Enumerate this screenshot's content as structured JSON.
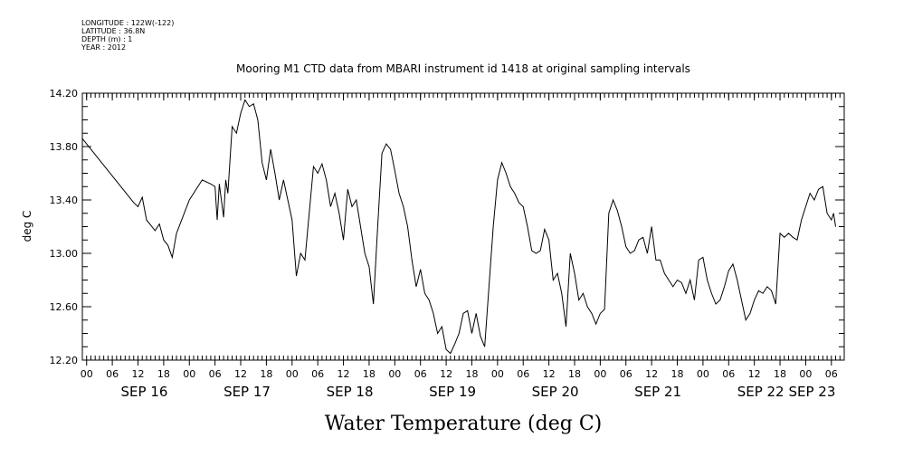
{
  "metadata": {
    "longitude": "LONGITUDE : 122W(-122)",
    "latitude": "LATITUDE : 36.8N",
    "depth": "DEPTH (m) : 1",
    "year": "YEAR : 2012"
  },
  "chart_data": {
    "type": "line",
    "title": "Mooring M1 CTD data from MBARI instrument id 1418 at original sampling intervals",
    "xlabel": "Water Temperature (deg C)",
    "ylabel": "deg C",
    "xlim": [
      "2012-09-15T23:00",
      "2012-09-23T09:00"
    ],
    "ylim": [
      12.2,
      14.2
    ],
    "yticks": [
      12.2,
      12.6,
      13.0,
      13.4,
      13.8,
      14.2
    ],
    "y_tick_labels": [
      "12.20",
      "12.60",
      "13.00",
      "13.40",
      "13.80",
      "14.20"
    ],
    "x_tick_labels": [
      {
        "t": "2012-09-16T00:00",
        "label": "00"
      },
      {
        "t": "2012-09-16T06:00",
        "label": "06"
      },
      {
        "t": "2012-09-16T12:00",
        "label": "12"
      },
      {
        "t": "2012-09-16T18:00",
        "label": "18"
      },
      {
        "t": "2012-09-17T00:00",
        "label": "00"
      },
      {
        "t": "2012-09-17T06:00",
        "label": "06"
      },
      {
        "t": "2012-09-17T12:00",
        "label": "12"
      },
      {
        "t": "2012-09-17T18:00",
        "label": "18"
      },
      {
        "t": "2012-09-18T00:00",
        "label": "00"
      },
      {
        "t": "2012-09-18T06:00",
        "label": "06"
      },
      {
        "t": "2012-09-18T12:00",
        "label": "12"
      },
      {
        "t": "2012-09-18T18:00",
        "label": "18"
      },
      {
        "t": "2012-09-19T00:00",
        "label": "00"
      },
      {
        "t": "2012-09-19T06:00",
        "label": "06"
      },
      {
        "t": "2012-09-19T12:00",
        "label": "12"
      },
      {
        "t": "2012-09-19T18:00",
        "label": "18"
      },
      {
        "t": "2012-09-20T00:00",
        "label": "00"
      },
      {
        "t": "2012-09-20T06:00",
        "label": "06"
      },
      {
        "t": "2012-09-20T12:00",
        "label": "12"
      },
      {
        "t": "2012-09-20T18:00",
        "label": "18"
      },
      {
        "t": "2012-09-21T00:00",
        "label": "00"
      },
      {
        "t": "2012-09-21T06:00",
        "label": "06"
      },
      {
        "t": "2012-09-21T12:00",
        "label": "12"
      },
      {
        "t": "2012-09-21T18:00",
        "label": "18"
      },
      {
        "t": "2012-09-22T00:00",
        "label": "00"
      },
      {
        "t": "2012-09-22T06:00",
        "label": "06"
      },
      {
        "t": "2012-09-22T12:00",
        "label": "12"
      },
      {
        "t": "2012-09-22T18:00",
        "label": "18"
      },
      {
        "t": "2012-09-23T00:00",
        "label": "00"
      },
      {
        "t": "2012-09-23T06:00",
        "label": "06"
      }
    ],
    "x_day_labels": [
      {
        "t": "2012-09-16T12:00",
        "label": "SEP 16"
      },
      {
        "t": "2012-09-17T12:00",
        "label": "SEP 17"
      },
      {
        "t": "2012-09-18T12:00",
        "label": "SEP 18"
      },
      {
        "t": "2012-09-19T12:00",
        "label": "SEP 19"
      },
      {
        "t": "2012-09-20T12:00",
        "label": "SEP 20"
      },
      {
        "t": "2012-09-21T12:00",
        "label": "SEP 21"
      },
      {
        "t": "2012-09-22T12:00",
        "label": "SEP 22"
      },
      {
        "t": "2012-09-23T00:00",
        "label": "SEP 23"
      }
    ],
    "grid": false,
    "series": [
      {
        "points": [
          [
            "2012-09-15T23:00",
            13.86
          ],
          [
            "2012-09-16T05:00",
            13.62
          ],
          [
            "2012-09-16T11:00",
            13.38
          ],
          [
            "2012-09-16T12:00",
            13.35
          ],
          [
            "2012-09-16T13:00",
            13.42
          ],
          [
            "2012-09-16T14:00",
            13.25
          ],
          [
            "2012-09-16T16:00",
            13.17
          ],
          [
            "2012-09-16T17:00",
            13.22
          ],
          [
            "2012-09-16T18:00",
            13.1
          ],
          [
            "2012-09-16T19:00",
            13.06
          ],
          [
            "2012-09-16T20:00",
            12.97
          ],
          [
            "2012-09-16T21:00",
            13.15
          ],
          [
            "2012-09-17T00:00",
            13.4
          ],
          [
            "2012-09-17T02:00",
            13.5
          ],
          [
            "2012-09-17T03:00",
            13.55
          ],
          [
            "2012-09-17T05:00",
            13.52
          ],
          [
            "2012-09-17T06:00",
            13.5
          ],
          [
            "2012-09-17T06:30",
            13.25
          ],
          [
            "2012-09-17T07:00",
            13.52
          ],
          [
            "2012-09-17T08:00",
            13.27
          ],
          [
            "2012-09-17T08:30",
            13.55
          ],
          [
            "2012-09-17T09:00",
            13.45
          ],
          [
            "2012-09-17T10:00",
            13.95
          ],
          [
            "2012-09-17T11:00",
            13.9
          ],
          [
            "2012-09-17T12:00",
            14.05
          ],
          [
            "2012-09-17T13:00",
            14.15
          ],
          [
            "2012-09-17T14:00",
            14.1
          ],
          [
            "2012-09-17T15:00",
            14.12
          ],
          [
            "2012-09-17T16:00",
            14.0
          ],
          [
            "2012-09-17T17:00",
            13.68
          ],
          [
            "2012-09-17T18:00",
            13.55
          ],
          [
            "2012-09-17T19:00",
            13.78
          ],
          [
            "2012-09-17T20:00",
            13.6
          ],
          [
            "2012-09-17T21:00",
            13.4
          ],
          [
            "2012-09-17T22:00",
            13.55
          ],
          [
            "2012-09-17T23:00",
            13.4
          ],
          [
            "2012-09-18T00:00",
            13.25
          ],
          [
            "2012-09-18T01:00",
            12.83
          ],
          [
            "2012-09-18T02:00",
            13.0
          ],
          [
            "2012-09-18T03:00",
            12.95
          ],
          [
            "2012-09-18T04:00",
            13.3
          ],
          [
            "2012-09-18T05:00",
            13.65
          ],
          [
            "2012-09-18T06:00",
            13.6
          ],
          [
            "2012-09-18T07:00",
            13.67
          ],
          [
            "2012-09-18T08:00",
            13.55
          ],
          [
            "2012-09-18T09:00",
            13.35
          ],
          [
            "2012-09-18T10:00",
            13.45
          ],
          [
            "2012-09-18T11:00",
            13.3
          ],
          [
            "2012-09-18T12:00",
            13.1
          ],
          [
            "2012-09-18T13:00",
            13.48
          ],
          [
            "2012-09-18T14:00",
            13.35
          ],
          [
            "2012-09-18T15:00",
            13.4
          ],
          [
            "2012-09-18T16:00",
            13.2
          ],
          [
            "2012-09-18T17:00",
            13.0
          ],
          [
            "2012-09-18T18:00",
            12.9
          ],
          [
            "2012-09-18T19:00",
            12.62
          ],
          [
            "2012-09-18T20:00",
            13.2
          ],
          [
            "2012-09-18T21:00",
            13.75
          ],
          [
            "2012-09-18T22:00",
            13.82
          ],
          [
            "2012-09-18T23:00",
            13.78
          ],
          [
            "2012-09-19T00:00",
            13.62
          ],
          [
            "2012-09-19T01:00",
            13.45
          ],
          [
            "2012-09-19T02:00",
            13.35
          ],
          [
            "2012-09-19T03:00",
            13.2
          ],
          [
            "2012-09-19T04:00",
            12.95
          ],
          [
            "2012-09-19T05:00",
            12.75
          ],
          [
            "2012-09-19T06:00",
            12.88
          ],
          [
            "2012-09-19T07:00",
            12.7
          ],
          [
            "2012-09-19T08:00",
            12.65
          ],
          [
            "2012-09-19T09:00",
            12.55
          ],
          [
            "2012-09-19T10:00",
            12.4
          ],
          [
            "2012-09-19T11:00",
            12.45
          ],
          [
            "2012-09-19T12:00",
            12.28
          ],
          [
            "2012-09-19T13:00",
            12.25
          ],
          [
            "2012-09-19T14:00",
            12.32
          ],
          [
            "2012-09-19T15:00",
            12.4
          ],
          [
            "2012-09-19T16:00",
            12.55
          ],
          [
            "2012-09-19T17:00",
            12.57
          ],
          [
            "2012-09-19T18:00",
            12.4
          ],
          [
            "2012-09-19T19:00",
            12.55
          ],
          [
            "2012-09-19T20:00",
            12.38
          ],
          [
            "2012-09-19T21:00",
            12.3
          ],
          [
            "2012-09-19T22:00",
            12.75
          ],
          [
            "2012-09-19T23:00",
            13.2
          ],
          [
            "2012-09-20T00:00",
            13.55
          ],
          [
            "2012-09-20T01:00",
            13.68
          ],
          [
            "2012-09-20T02:00",
            13.6
          ],
          [
            "2012-09-20T03:00",
            13.5
          ],
          [
            "2012-09-20T04:00",
            13.45
          ],
          [
            "2012-09-20T05:00",
            13.38
          ],
          [
            "2012-09-20T06:00",
            13.35
          ],
          [
            "2012-09-20T07:00",
            13.2
          ],
          [
            "2012-09-20T08:00",
            13.02
          ],
          [
            "2012-09-20T09:00",
            13.0
          ],
          [
            "2012-09-20T10:00",
            13.02
          ],
          [
            "2012-09-20T11:00",
            13.18
          ],
          [
            "2012-09-20T12:00",
            13.1
          ],
          [
            "2012-09-20T13:00",
            12.8
          ],
          [
            "2012-09-20T14:00",
            12.85
          ],
          [
            "2012-09-20T15:00",
            12.7
          ],
          [
            "2012-09-20T16:00",
            12.45
          ],
          [
            "2012-09-20T17:00",
            13.0
          ],
          [
            "2012-09-20T18:00",
            12.85
          ],
          [
            "2012-09-20T19:00",
            12.65
          ],
          [
            "2012-09-20T20:00",
            12.7
          ],
          [
            "2012-09-20T21:00",
            12.6
          ],
          [
            "2012-09-20T22:00",
            12.55
          ],
          [
            "2012-09-20T23:00",
            12.47
          ],
          [
            "2012-09-21T00:00",
            12.55
          ],
          [
            "2012-09-21T01:00",
            12.58
          ],
          [
            "2012-09-21T02:00",
            13.3
          ],
          [
            "2012-09-21T03:00",
            13.4
          ],
          [
            "2012-09-21T04:00",
            13.32
          ],
          [
            "2012-09-21T05:00",
            13.2
          ],
          [
            "2012-09-21T06:00",
            13.05
          ],
          [
            "2012-09-21T07:00",
            13.0
          ],
          [
            "2012-09-21T08:00",
            13.02
          ],
          [
            "2012-09-21T09:00",
            13.1
          ],
          [
            "2012-09-21T10:00",
            13.12
          ],
          [
            "2012-09-21T11:00",
            13.0
          ],
          [
            "2012-09-21T12:00",
            13.2
          ],
          [
            "2012-09-21T13:00",
            12.95
          ],
          [
            "2012-09-21T14:00",
            12.95
          ],
          [
            "2012-09-21T15:00",
            12.85
          ],
          [
            "2012-09-21T16:00",
            12.8
          ],
          [
            "2012-09-21T17:00",
            12.75
          ],
          [
            "2012-09-21T18:00",
            12.8
          ],
          [
            "2012-09-21T19:00",
            12.78
          ],
          [
            "2012-09-21T20:00",
            12.7
          ],
          [
            "2012-09-21T21:00",
            12.8
          ],
          [
            "2012-09-21T22:00",
            12.65
          ],
          [
            "2012-09-21T23:00",
            12.95
          ],
          [
            "2012-09-22T00:00",
            12.97
          ],
          [
            "2012-09-22T01:00",
            12.8
          ],
          [
            "2012-09-22T02:00",
            12.7
          ],
          [
            "2012-09-22T03:00",
            12.62
          ],
          [
            "2012-09-22T04:00",
            12.65
          ],
          [
            "2012-09-22T05:00",
            12.75
          ],
          [
            "2012-09-22T06:00",
            12.87
          ],
          [
            "2012-09-22T07:00",
            12.92
          ],
          [
            "2012-09-22T08:00",
            12.8
          ],
          [
            "2012-09-22T09:00",
            12.65
          ],
          [
            "2012-09-22T10:00",
            12.5
          ],
          [
            "2012-09-22T11:00",
            12.55
          ],
          [
            "2012-09-22T12:00",
            12.65
          ],
          [
            "2012-09-22T13:00",
            12.72
          ],
          [
            "2012-09-22T14:00",
            12.7
          ],
          [
            "2012-09-22T15:00",
            12.75
          ],
          [
            "2012-09-22T16:00",
            12.72
          ],
          [
            "2012-09-22T17:00",
            12.62
          ],
          [
            "2012-09-22T18:00",
            13.15
          ],
          [
            "2012-09-22T19:00",
            13.12
          ],
          [
            "2012-09-22T20:00",
            13.15
          ],
          [
            "2012-09-22T21:00",
            13.12
          ],
          [
            "2012-09-22T22:00",
            13.1
          ],
          [
            "2012-09-22T23:00",
            13.25
          ],
          [
            "2012-09-23T00:00",
            13.35
          ],
          [
            "2012-09-23T01:00",
            13.45
          ],
          [
            "2012-09-23T02:00",
            13.4
          ],
          [
            "2012-09-23T03:00",
            13.48
          ],
          [
            "2012-09-23T04:00",
            13.5
          ],
          [
            "2012-09-23T05:00",
            13.3
          ],
          [
            "2012-09-23T06:00",
            13.25
          ],
          [
            "2012-09-23T06:30",
            13.3
          ],
          [
            "2012-09-23T07:00",
            13.2
          ]
        ]
      }
    ]
  }
}
